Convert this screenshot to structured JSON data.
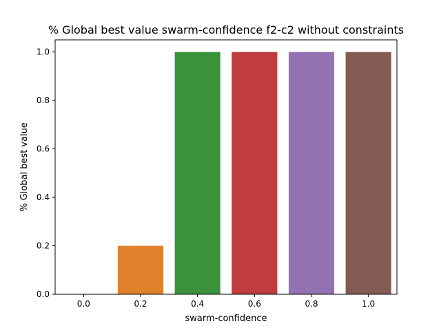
{
  "chart_data": {
    "type": "bar",
    "title": "% Global best value swarm-confidence f2-c2 without constraints",
    "xlabel": "swarm-confidence",
    "ylabel": "% Global best value",
    "categories": [
      "0.0",
      "0.2",
      "0.4",
      "0.6",
      "0.8",
      "1.0"
    ],
    "values": [
      0.0,
      0.2,
      1.0,
      1.0,
      1.0,
      1.0
    ],
    "colors": [
      "#3a75af",
      "#e1812c",
      "#3a923a",
      "#c03d3e",
      "#9372b2",
      "#845b53"
    ],
    "ylim": [
      0,
      1.05
    ],
    "yticks": [
      0.0,
      0.2,
      0.4,
      0.6,
      0.8,
      1.0
    ],
    "ytick_labels": [
      "0.0",
      "0.2",
      "0.4",
      "0.6",
      "0.8",
      "1.0"
    ],
    "grid": false,
    "legend": "none"
  }
}
